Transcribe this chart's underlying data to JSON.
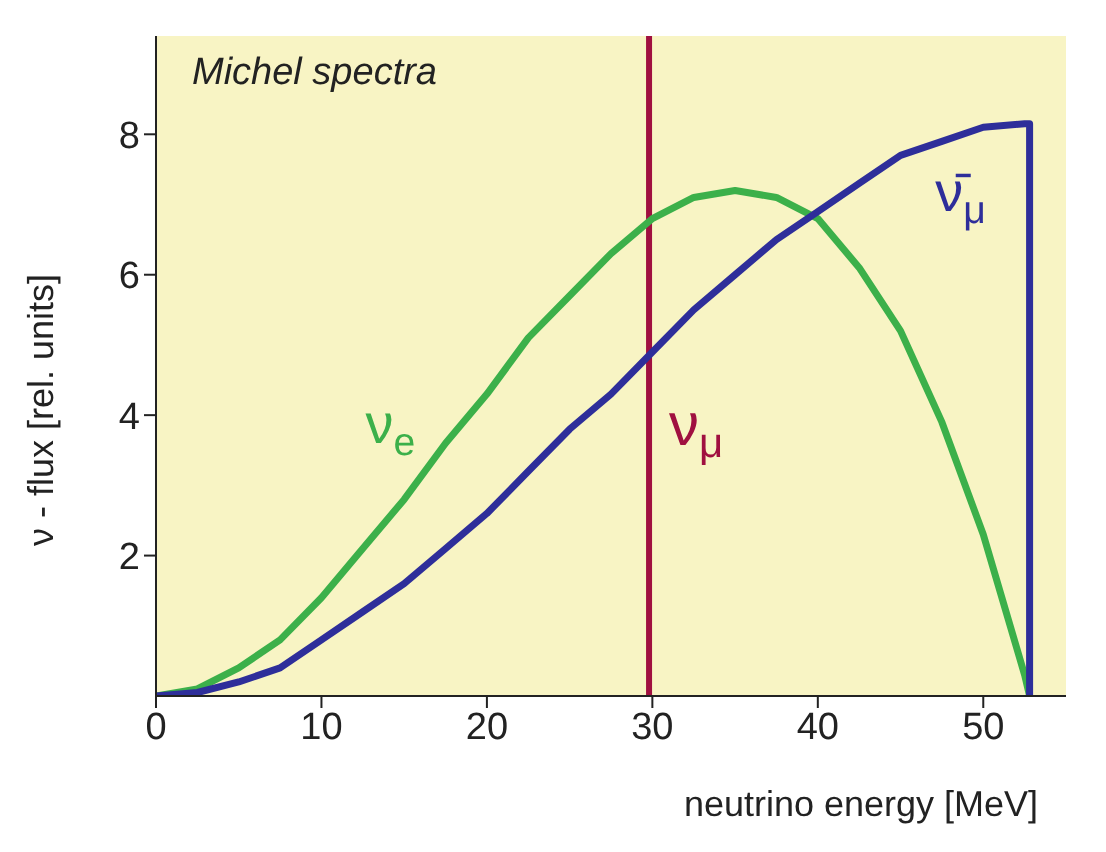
{
  "chart_data": {
    "type": "line",
    "xlabel": "neutrino energy [MeV]",
    "ylabel": "ν - flux [rel. units]",
    "annotations": [
      "Michel spectra"
    ],
    "series": [
      {
        "name": "ν$_{e}$",
        "color": "#3cb04a",
        "x": [
          0,
          2.5,
          5,
          7.5,
          10,
          12.5,
          15,
          17.5,
          20,
          22.5,
          25,
          27.5,
          30,
          32.5,
          35,
          37.5,
          40,
          42.5,
          45,
          47.5,
          50,
          52.5,
          52.8
        ],
        "values": [
          0,
          0.1,
          0.4,
          0.8,
          1.4,
          2.1,
          2.8,
          3.6,
          4.3,
          5.1,
          5.7,
          6.3,
          6.8,
          7.1,
          7.2,
          7.1,
          6.8,
          6.1,
          5.2,
          3.9,
          2.3,
          0.3,
          0
        ]
      },
      {
        "name": "ν̄$_{μ}$",
        "color": "#2e2e9a",
        "x": [
          0,
          2.5,
          5,
          7.5,
          10,
          12.5,
          15,
          17.5,
          20,
          22.5,
          25,
          27.5,
          30,
          32.5,
          35,
          37.5,
          40,
          42.5,
          45,
          47.5,
          50,
          52.5,
          52.8,
          52.8
        ],
        "values": [
          0,
          0.05,
          0.2,
          0.4,
          0.8,
          1.2,
          1.6,
          2.1,
          2.6,
          3.2,
          3.8,
          4.3,
          4.9,
          5.5,
          6.0,
          6.5,
          6.9,
          7.3,
          7.7,
          7.9,
          8.1,
          8.15,
          8.15,
          0
        ]
      }
    ],
    "ref_lines": [
      {
        "axis": "x",
        "value": 29.8,
        "label": "ν$_{μ}$",
        "color": "#a01040"
      }
    ],
    "xlim": [
      0,
      55
    ],
    "xticks": [
      0,
      10,
      20,
      30,
      40,
      50
    ],
    "ylim": [
      0,
      9.4
    ],
    "yticks": [
      2,
      4,
      6,
      8
    ],
    "legend": false,
    "marker": "none",
    "line_style": "solid"
  }
}
